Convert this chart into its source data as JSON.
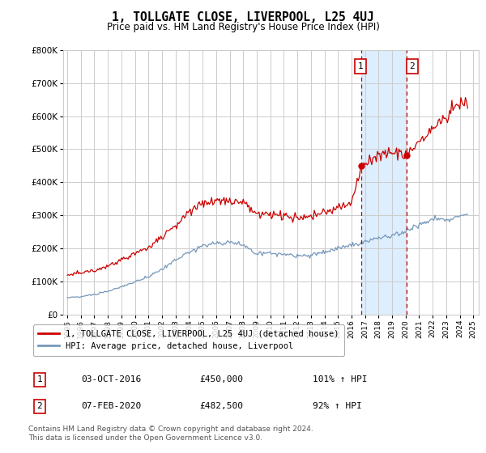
{
  "title": "1, TOLLGATE CLOSE, LIVERPOOL, L25 4UJ",
  "subtitle": "Price paid vs. HM Land Registry's House Price Index (HPI)",
  "red_color": "#cc0000",
  "blue_color": "#7799bb",
  "highlight_color": "#ddeeff",
  "vline_color": "#cc0000",
  "grid_color": "#cccccc",
  "background_color": "#ffffff",
  "yticks": [
    0,
    100000,
    200000,
    300000,
    400000,
    500000,
    600000,
    700000,
    800000
  ],
  "ytick_labels": [
    "£0",
    "£100K",
    "£200K",
    "£300K",
    "£400K",
    "£500K",
    "£600K",
    "£700K",
    "£800K"
  ],
  "xmin": 1994.7,
  "xmax": 2025.4,
  "ymin": 0,
  "ymax": 800000,
  "sale1_x": 2016.75,
  "sale1_y": 450000,
  "sale1_label": "1",
  "sale2_x": 2020.08,
  "sale2_y": 482500,
  "sale2_label": "2",
  "highlight_xmin": 2016.75,
  "highlight_xmax": 2020.08,
  "legend_label_red": "1, TOLLGATE CLOSE, LIVERPOOL, L25 4UJ (detached house)",
  "legend_label_blue": "HPI: Average price, detached house, Liverpool",
  "table_row1": [
    "1",
    "03-OCT-2016",
    "£450,000",
    "101% ↑ HPI"
  ],
  "table_row2": [
    "2",
    "07-FEB-2020",
    "£482,500",
    "92% ↑ HPI"
  ],
  "footer": "Contains HM Land Registry data © Crown copyright and database right 2024.\nThis data is licensed under the Open Government Licence v3.0."
}
